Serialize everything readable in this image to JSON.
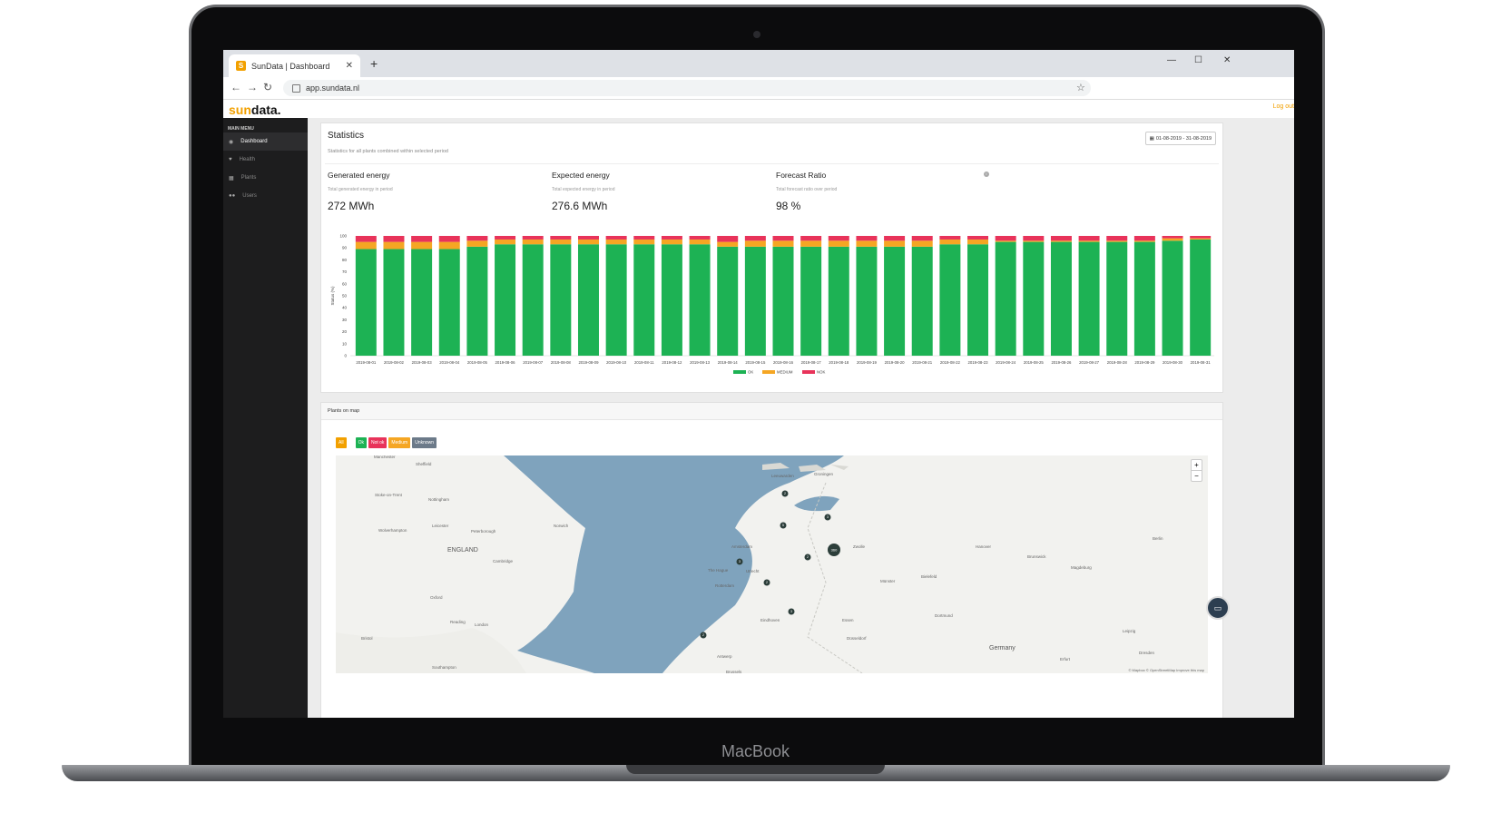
{
  "browser": {
    "tab_title": "SunData | Dashboard",
    "favicon_letter": "S",
    "url": "app.sundata.nl"
  },
  "app": {
    "logo_sun": "sun",
    "logo_data": "data.",
    "logout": "Log out"
  },
  "sidebar": {
    "title": "MAIN MENU",
    "items": [
      {
        "label": "Dashboard",
        "icon": "dashboard-icon",
        "active": true
      },
      {
        "label": "Health",
        "icon": "heart-icon",
        "active": false
      },
      {
        "label": "Plants",
        "icon": "solar-panel-icon",
        "active": false
      },
      {
        "label": "Users",
        "icon": "users-icon",
        "active": false
      }
    ]
  },
  "statistics": {
    "title": "Statistics",
    "subtitle": "Statistics for all plants combined within selected period",
    "date_range": "01-08-2019 - 31-08-2019",
    "cards": [
      {
        "label": "Generated energy",
        "desc": "Total generated energy in period",
        "value": "272 MWh"
      },
      {
        "label": "Expected energy",
        "desc": "Total expected energy in period",
        "value": "276.6 MWh"
      },
      {
        "label": "Forecast Ratio",
        "desc": "Total forecast ratio over period",
        "value": "98 %"
      }
    ]
  },
  "chart_data": {
    "type": "bar",
    "stacked": true,
    "ylabel": "Status (%)",
    "ylim": [
      0,
      100
    ],
    "yticks": [
      0,
      10,
      20,
      30,
      40,
      50,
      60,
      70,
      80,
      90,
      100
    ],
    "categories": [
      "2019-08-01",
      "2019-08-02",
      "2019-08-03",
      "2019-08-04",
      "2019-08-05",
      "2019-08-06",
      "2019-08-07",
      "2019-08-08",
      "2019-08-09",
      "2019-08-10",
      "2019-08-11",
      "2019-08-12",
      "2019-08-13",
      "2019-08-14",
      "2019-08-15",
      "2019-08-16",
      "2019-08-17",
      "2019-08-18",
      "2019-08-19",
      "2019-08-20",
      "2019-08-21",
      "2019-08-22",
      "2019-08-23",
      "2019-08-24",
      "2019-08-25",
      "2019-08-26",
      "2019-08-27",
      "2019-08-28",
      "2019-08-29",
      "2019-08-30",
      "2019-08-31"
    ],
    "series": [
      {
        "name": "OK",
        "color": "#1db254",
        "values": [
          89,
          89,
          89,
          89,
          91,
          93,
          93,
          93,
          93,
          93,
          93,
          93,
          93,
          91,
          91,
          91,
          91,
          91,
          91,
          91,
          91,
          93,
          93,
          95,
          95,
          95,
          95,
          95,
          95,
          96,
          97
        ]
      },
      {
        "name": "MEDIUM",
        "color": "#f5a623",
        "values": [
          6,
          6,
          6,
          6,
          5,
          4,
          4,
          4,
          4,
          4,
          4,
          4,
          4,
          4,
          5,
          5,
          5,
          5,
          5,
          5,
          5,
          4,
          4,
          1,
          1,
          1,
          1,
          1,
          1,
          2,
          1
        ]
      },
      {
        "name": "NOK",
        "color": "#e8335a",
        "values": [
          5,
          5,
          5,
          5,
          4,
          3,
          3,
          3,
          3,
          3,
          3,
          3,
          3,
          5,
          4,
          4,
          4,
          4,
          4,
          4,
          4,
          3,
          3,
          4,
          4,
          4,
          4,
          4,
          4,
          2,
          2
        ]
      }
    ],
    "legend_position": "bottom"
  },
  "map_section": {
    "title": "Plants on map",
    "filters": [
      {
        "label": "All",
        "color": "#f2a000"
      },
      {
        "label": "Ok",
        "color": "#1db254"
      },
      {
        "label": "Not ok",
        "color": "#e8335a"
      },
      {
        "label": "Medium",
        "color": "#f5a623"
      },
      {
        "label": "Unknown",
        "color": "#6c7a89"
      }
    ],
    "places": [
      "Manchester",
      "Sheffield",
      "Stoke-on-Trent",
      "Nottingham",
      "Leicester",
      "Peterborough",
      "Norwich",
      "Wolverhampton",
      "ENGLAND",
      "Cambridge",
      "Oxford",
      "Reading",
      "London",
      "Southampton",
      "Bristol",
      "Leeuwarden",
      "Groningen",
      "Amsterdam",
      "The Hague",
      "Utrecht",
      "Rotterdam",
      "Eindhoven",
      "Antwerp",
      "Brussels",
      "Zwolle",
      "Münster",
      "Bielefeld",
      "Hanover",
      "Brunswick",
      "Magdeburg",
      "Dortmund",
      "Essen",
      "Düsseldorf",
      "Berlin",
      "Leipzig",
      "Dresden",
      "Erfurt",
      "Germany"
    ],
    "cluster_counts": [
      "2",
      "5",
      "3",
      "2",
      "360",
      "3",
      "2",
      "3",
      "2"
    ],
    "attribution": "© Mapbox © OpenStreetMap Improve this map",
    "zoom_in": "+",
    "zoom_out": "−"
  },
  "device": {
    "brand": "MacBook"
  }
}
